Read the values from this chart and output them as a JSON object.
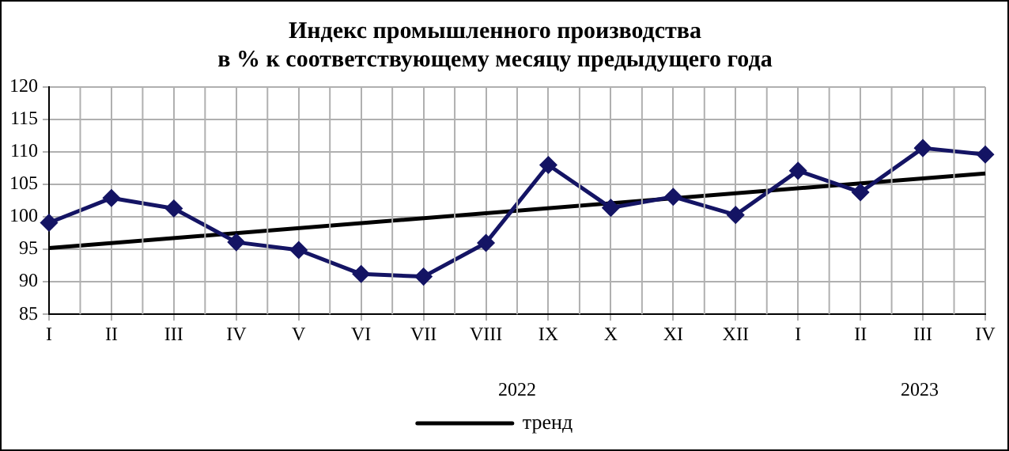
{
  "chart_data": {
    "type": "line",
    "title": "Индекс промышленного производства\nв % к соответствующему месяцу предыдущего года",
    "categories": [
      "I",
      "II",
      "III",
      "IV",
      "V",
      "VI",
      "VII",
      "VIII",
      "IX",
      "X",
      "XI",
      "XII",
      "I",
      "II",
      "III",
      "IV"
    ],
    "series": [
      {
        "color": "#141464",
        "marker": "diamond",
        "values": [
          99.1,
          102.9,
          101.3,
          96.1,
          94.9,
          91.2,
          90.8,
          96.0,
          108.0,
          101.4,
          103.1,
          100.3,
          107.1,
          103.8,
          110.6,
          109.6
        ]
      },
      {
        "name": "тренд",
        "color": "#000000",
        "marker": "none",
        "values": [
          95.2,
          null,
          null,
          null,
          null,
          null,
          null,
          null,
          null,
          null,
          null,
          null,
          null,
          null,
          null,
          106.7
        ]
      }
    ],
    "ylim": [
      85,
      120
    ],
    "yticks": [
      85,
      90,
      95,
      100,
      105,
      110,
      115,
      120
    ],
    "grid": true,
    "legend": "bottom",
    "annotations": [
      "2022",
      "2023"
    ]
  }
}
